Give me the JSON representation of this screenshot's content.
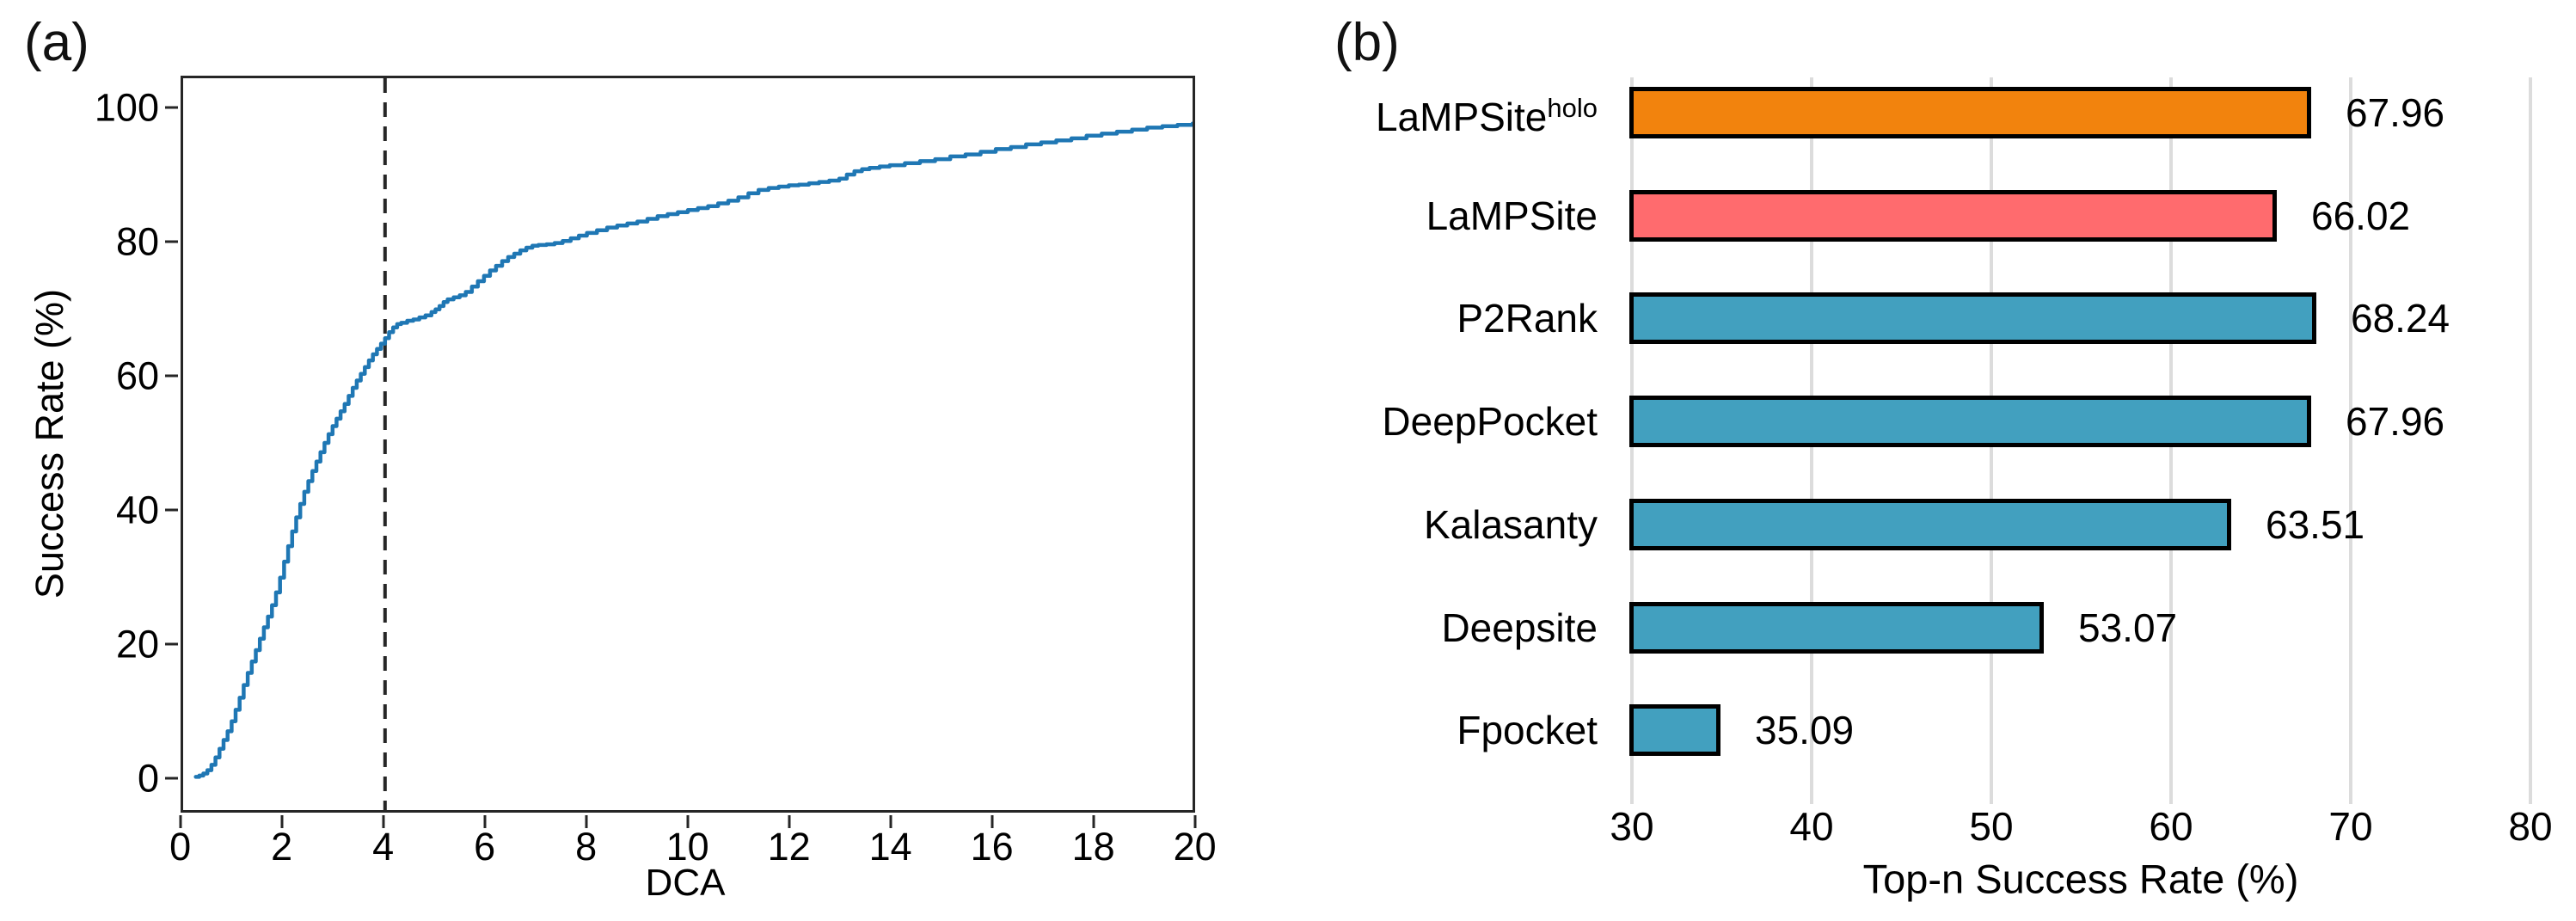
{
  "panel_a": {
    "tag": "(a)",
    "xlabel": "DCA",
    "ylabel": "Success Rate (%)"
  },
  "panel_b": {
    "tag": "(b)",
    "xlabel": "Top-n Success Rate (%)"
  },
  "colors": {
    "line_blue": "#1f77b4",
    "dashed_line": "#262626",
    "spine": "#262626",
    "grid_gray": "#dcdcdc",
    "bar_edge": "#000000",
    "orange": "#f2830d",
    "salmon": "#ff6b6e",
    "teal": "#42a0bf"
  },
  "chart_data": [
    {
      "id": "dca-success-curve",
      "type": "line",
      "panel": "a",
      "title": "",
      "xlabel": "DCA",
      "ylabel": "Success Rate (%)",
      "xlim": [
        0,
        20
      ],
      "ylim": [
        -5,
        105
      ],
      "x_ticks": [
        0,
        2,
        4,
        6,
        8,
        10,
        12,
        14,
        16,
        18,
        20
      ],
      "y_ticks": [
        0,
        20,
        40,
        60,
        80,
        100
      ],
      "grid": false,
      "legend": null,
      "line_color": "#1f77b4",
      "vline": {
        "x": 4,
        "style": "dashed",
        "color": "#262626"
      },
      "points": [
        [
          0.25,
          0.2
        ],
        [
          0.32,
          0.4
        ],
        [
          0.4,
          0.7
        ],
        [
          0.48,
          1.2
        ],
        [
          0.56,
          2.0
        ],
        [
          0.64,
          3.1
        ],
        [
          0.72,
          4.4
        ],
        [
          0.8,
          5.7
        ],
        [
          0.88,
          7.0
        ],
        [
          0.96,
          8.5
        ],
        [
          1.04,
          10.2
        ],
        [
          1.12,
          12.0
        ],
        [
          1.2,
          13.9
        ],
        [
          1.28,
          15.7
        ],
        [
          1.36,
          17.4
        ],
        [
          1.44,
          19.1
        ],
        [
          1.52,
          20.8
        ],
        [
          1.6,
          22.5
        ],
        [
          1.68,
          24.1
        ],
        [
          1.76,
          25.8
        ],
        [
          1.84,
          27.7
        ],
        [
          1.92,
          29.9
        ],
        [
          2.0,
          32.3
        ],
        [
          2.08,
          34.6
        ],
        [
          2.16,
          36.8
        ],
        [
          2.24,
          38.9
        ],
        [
          2.32,
          40.9
        ],
        [
          2.4,
          42.7
        ],
        [
          2.48,
          44.3
        ],
        [
          2.56,
          45.8
        ],
        [
          2.64,
          47.2
        ],
        [
          2.72,
          48.6
        ],
        [
          2.8,
          50.0
        ],
        [
          2.88,
          51.3
        ],
        [
          2.96,
          52.5
        ],
        [
          3.04,
          53.6
        ],
        [
          3.12,
          54.7
        ],
        [
          3.2,
          55.8
        ],
        [
          3.28,
          57.0
        ],
        [
          3.36,
          58.2
        ],
        [
          3.44,
          59.3
        ],
        [
          3.52,
          60.3
        ],
        [
          3.6,
          61.3
        ],
        [
          3.68,
          62.3
        ],
        [
          3.76,
          63.2
        ],
        [
          3.84,
          64.0
        ],
        [
          3.92,
          64.8
        ],
        [
          4.0,
          65.6
        ],
        [
          4.08,
          66.5
        ],
        [
          4.16,
          67.2
        ],
        [
          4.24,
          67.7
        ],
        [
          4.32,
          67.9
        ],
        [
          4.44,
          68.2
        ],
        [
          4.56,
          68.4
        ],
        [
          4.68,
          68.7
        ],
        [
          4.8,
          69.0
        ],
        [
          4.92,
          69.5
        ],
        [
          5.0,
          69.9
        ],
        [
          5.08,
          70.4
        ],
        [
          5.16,
          71.0
        ],
        [
          5.24,
          71.4
        ],
        [
          5.36,
          71.7
        ],
        [
          5.48,
          72.0
        ],
        [
          5.6,
          72.5
        ],
        [
          5.72,
          73.3
        ],
        [
          5.84,
          74.1
        ],
        [
          5.96,
          74.9
        ],
        [
          6.08,
          75.7
        ],
        [
          6.2,
          76.4
        ],
        [
          6.32,
          77.1
        ],
        [
          6.44,
          77.7
        ],
        [
          6.56,
          78.2
        ],
        [
          6.68,
          78.7
        ],
        [
          6.8,
          79.1
        ],
        [
          6.92,
          79.4
        ],
        [
          7.04,
          79.5
        ],
        [
          7.2,
          79.6
        ],
        [
          7.36,
          79.8
        ],
        [
          7.52,
          80.1
        ],
        [
          7.68,
          80.5
        ],
        [
          7.84,
          80.9
        ],
        [
          8.0,
          81.3
        ],
        [
          8.2,
          81.7
        ],
        [
          8.4,
          82.1
        ],
        [
          8.6,
          82.4
        ],
        [
          8.8,
          82.7
        ],
        [
          9.0,
          83.0
        ],
        [
          9.2,
          83.4
        ],
        [
          9.4,
          83.8
        ],
        [
          9.6,
          84.1
        ],
        [
          9.8,
          84.4
        ],
        [
          10.0,
          84.7
        ],
        [
          10.2,
          85.0
        ],
        [
          10.4,
          85.3
        ],
        [
          10.6,
          85.7
        ],
        [
          10.8,
          86.1
        ],
        [
          11.0,
          86.6
        ],
        [
          11.2,
          87.2
        ],
        [
          11.4,
          87.7
        ],
        [
          11.6,
          88.0
        ],
        [
          11.8,
          88.2
        ],
        [
          12.0,
          88.4
        ],
        [
          12.2,
          88.5
        ],
        [
          12.4,
          88.7
        ],
        [
          12.6,
          88.9
        ],
        [
          12.8,
          89.1
        ],
        [
          13.0,
          89.4
        ],
        [
          13.15,
          90.0
        ],
        [
          13.3,
          90.5
        ],
        [
          13.45,
          90.8
        ],
        [
          13.6,
          91.0
        ],
        [
          13.8,
          91.2
        ],
        [
          14.0,
          91.4
        ],
        [
          14.3,
          91.7
        ],
        [
          14.6,
          92.0
        ],
        [
          14.9,
          92.3
        ],
        [
          15.2,
          92.7
        ],
        [
          15.5,
          93.0
        ],
        [
          15.8,
          93.4
        ],
        [
          16.1,
          93.8
        ],
        [
          16.4,
          94.1
        ],
        [
          16.7,
          94.5
        ],
        [
          17.0,
          94.8
        ],
        [
          17.3,
          95.1
        ],
        [
          17.6,
          95.4
        ],
        [
          17.9,
          95.8
        ],
        [
          18.2,
          96.1
        ],
        [
          18.5,
          96.4
        ],
        [
          18.8,
          96.7
        ],
        [
          19.1,
          97.0
        ],
        [
          19.4,
          97.2
        ],
        [
          19.7,
          97.4
        ],
        [
          20.0,
          97.6
        ]
      ]
    },
    {
      "id": "top-n-success-bars",
      "type": "bar",
      "panel": "b",
      "orientation": "horizontal",
      "categories": [
        {
          "name": "LaMPSite",
          "sup": "holo"
        },
        {
          "name": "LaMPSite",
          "sup": ""
        },
        {
          "name": "P2Rank",
          "sup": ""
        },
        {
          "name": "DeepPocket",
          "sup": ""
        },
        {
          "name": "Kalasanty",
          "sup": ""
        },
        {
          "name": "Deepsite",
          "sup": ""
        },
        {
          "name": "Fpocket",
          "sup": ""
        }
      ],
      "values": [
        67.96,
        66.02,
        68.24,
        67.96,
        63.51,
        53.07,
        35.09
      ],
      "value_labels": [
        "67.96",
        "66.02",
        "68.24",
        "67.96",
        "63.51",
        "53.07",
        "35.09"
      ],
      "bar_colors": [
        "#f2830d",
        "#ff6b6e",
        "#42a0bf",
        "#42a0bf",
        "#42a0bf",
        "#42a0bf",
        "#42a0bf"
      ],
      "bar_edge_color": "#000000",
      "xlabel": "Top-n Success Rate (%)",
      "x_ticks": [
        30,
        40,
        50,
        60,
        70,
        80
      ],
      "xlim": [
        30,
        82
      ],
      "grid": true,
      "grid_color": "#dcdcdc",
      "legend": null
    }
  ]
}
